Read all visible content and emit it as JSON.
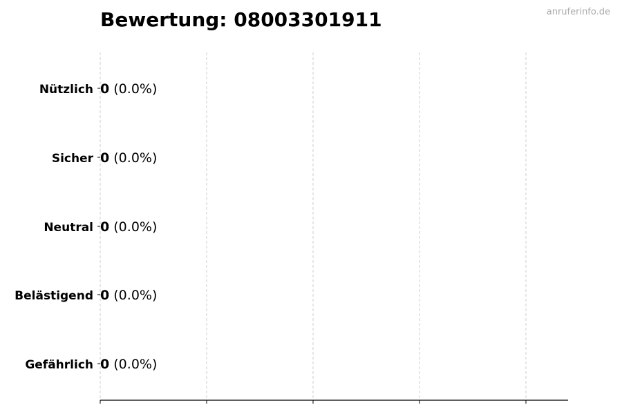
{
  "watermark": "anruferinfo.de",
  "chart_data": {
    "type": "bar",
    "orientation": "horizontal",
    "title": "Bewertung: 08003301911",
    "categories": [
      "Nützlich",
      "Sicher",
      "Neutral",
      "Belästigend",
      "Gefährlich"
    ],
    "values": [
      0,
      0,
      0,
      0,
      0
    ],
    "percent_labels": [
      "(0.0%)",
      "(0.0%)",
      "(0.0%)",
      "(0.0%)",
      "(0.0%)"
    ],
    "xlabel": "",
    "ylabel": "",
    "x_tick_labels_shown": false,
    "grid": "vertical dashed",
    "colors": {
      "bar_edge": "#000000",
      "grid": "#cccccc",
      "text": "#000000",
      "watermark": "#aaaaaa"
    }
  }
}
